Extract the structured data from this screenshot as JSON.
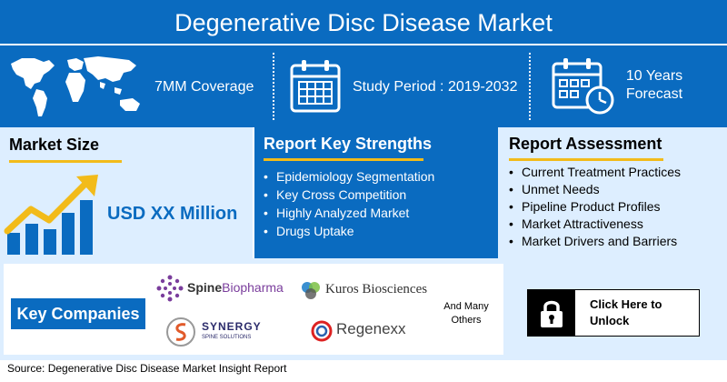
{
  "title": "Degenerative Disc Disease Market",
  "top_band": {
    "coverage": "7MM Coverage",
    "study_period": "Study Period : 2019-2032",
    "forecast_line1": "10 Years",
    "forecast_line2": "Forecast"
  },
  "market_size": {
    "heading": "Market Size",
    "value": "USD XX Million"
  },
  "strengths": {
    "heading": "Report Key Strengths",
    "items": [
      "Epidemiology Segmentation",
      "Key Cross Competition",
      "Highly Analyzed Market",
      "Drugs Uptake"
    ]
  },
  "assessment": {
    "heading": "Report Assessment",
    "items": [
      "Current Treatment Practices",
      "Unmet Needs",
      "Pipeline Product Profiles",
      "Market Attractiveness",
      "Market Drivers and Barriers"
    ]
  },
  "companies": {
    "label": "Key Companies",
    "logos": {
      "spine_prefix": "Spine",
      "spine_suffix": "Biopharma",
      "kuros": "Kuros Biosciences",
      "synergy_main": "SYNERGY",
      "synergy_sub": "SPINE SOLUTIONS",
      "regenexx": "Regenexx"
    },
    "others_line1": "And Many",
    "others_line2": "Others"
  },
  "unlock": {
    "line1": "Click Here to",
    "line2": "Unlock"
  },
  "source": "Source: Degenerative Disc Disease Market Insight Report",
  "colors": {
    "primary_blue": "#0a6bc0",
    "light_blue": "#ddeeff",
    "accent_yellow": "#f2bb1a"
  },
  "icons": [
    "world-map-icon",
    "calendar-icon",
    "calendar-clock-icon",
    "growth-chart-icon",
    "padlock-icon"
  ]
}
